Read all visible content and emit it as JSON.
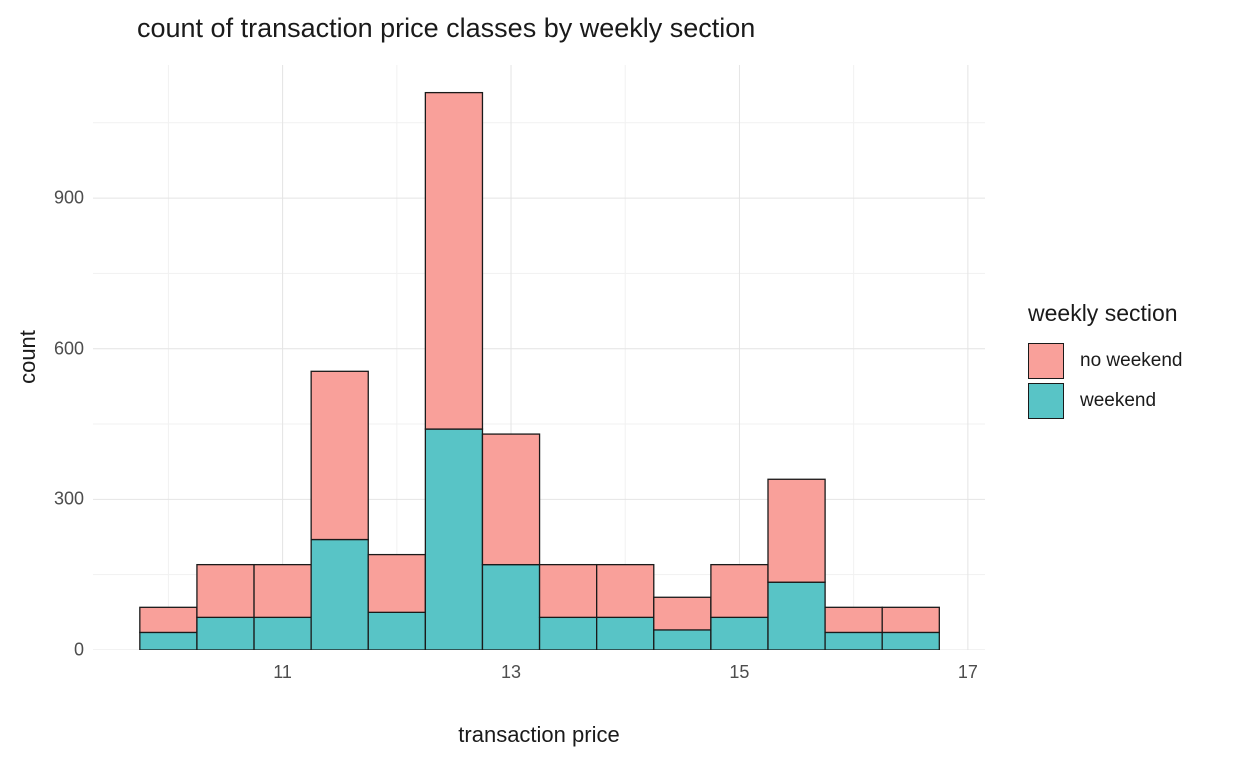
{
  "chart_data": {
    "type": "bar",
    "variant": "stacked-histogram",
    "title": "count of transaction price classes by weekly section",
    "xlabel": "transaction price",
    "ylabel": "count",
    "x_ticks": [
      11,
      13,
      15,
      17
    ],
    "x_minor_ticks": [
      10,
      12,
      14,
      16
    ],
    "y_ticks": [
      0,
      300,
      600,
      900
    ],
    "y_minor_ticks": [
      150,
      450,
      750,
      1050
    ],
    "xlim": [
      9.34,
      17.15
    ],
    "ylim": [
      0,
      1165
    ],
    "bin_width": 0.5,
    "bin_centers": [
      10,
      10.5,
      11,
      11.5,
      12,
      12.5,
      13,
      13.5,
      14,
      14.5,
      15,
      15.5,
      16,
      16.5
    ],
    "series": [
      {
        "name": "weekend",
        "color": "#58C4C6",
        "values": [
          35,
          65,
          65,
          220,
          75,
          440,
          170,
          65,
          65,
          40,
          65,
          135,
          35,
          35
        ]
      },
      {
        "name": "no weekend",
        "color": "#F9A09A",
        "values": [
          50,
          105,
          105,
          335,
          115,
          670,
          260,
          105,
          105,
          65,
          105,
          205,
          50,
          50
        ]
      }
    ],
    "legend": {
      "title": "weekly section",
      "position": "right",
      "entries": [
        {
          "label": "no weekend",
          "color": "#F9A09A"
        },
        {
          "label": "weekend",
          "color": "#58C4C6"
        }
      ]
    },
    "grid": true,
    "grid_major_color": "#E4E4E4",
    "grid_minor_color": "#F1F1F1",
    "bar_border_color": "#1A1A1A",
    "tick_label_color": "#4D4D4D",
    "text_color": "#1A1A1A"
  }
}
